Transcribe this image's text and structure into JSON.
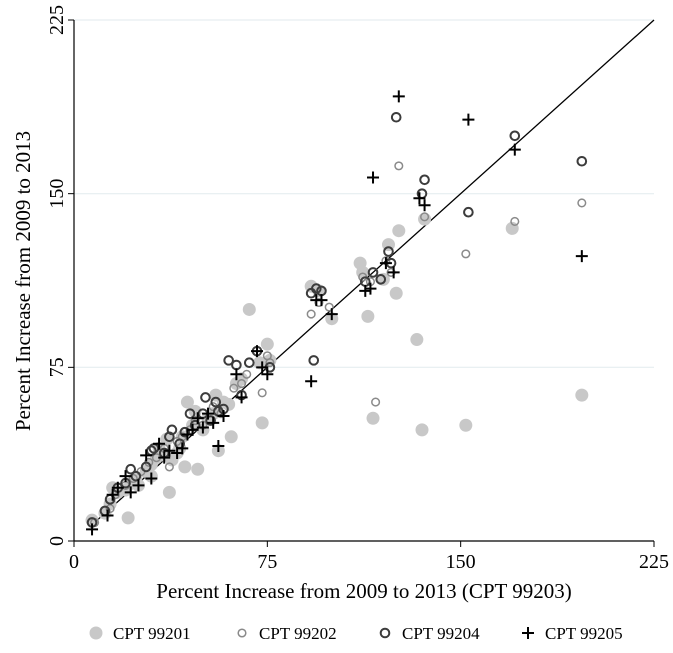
{
  "chart_data": {
    "type": "scatter",
    "xlabel": "Percent Increase from 2009 to 2013 (CPT 99203)",
    "ylabel": "Percent Increase from 2009 to 2013",
    "xlim": [
      0,
      225
    ],
    "ylim": [
      0,
      225
    ],
    "xticks": [
      0,
      75,
      150,
      225
    ],
    "yticks": [
      0,
      75,
      150,
      225
    ],
    "xtick_labels": [
      "0",
      "75",
      "150",
      "225"
    ],
    "ytick_labels": [
      "0",
      "75",
      "150",
      "225"
    ],
    "grid": "horizontal",
    "reference_line": {
      "from": [
        7,
        7
      ],
      "to": [
        225,
        225
      ]
    },
    "legend_position": "bottom",
    "series": [
      {
        "name": "CPT 99201",
        "marker": "filled-circle",
        "color": "#c8c8c8",
        "points": [
          [
            7,
            9
          ],
          [
            12,
            12
          ],
          [
            14,
            16
          ],
          [
            15,
            23
          ],
          [
            17,
            21
          ],
          [
            20,
            22
          ],
          [
            21,
            10
          ],
          [
            22,
            25
          ],
          [
            24,
            27
          ],
          [
            25,
            24
          ],
          [
            28,
            30
          ],
          [
            30,
            28
          ],
          [
            30,
            33
          ],
          [
            32,
            36
          ],
          [
            33,
            40
          ],
          [
            35,
            37
          ],
          [
            36,
            44
          ],
          [
            37,
            21
          ],
          [
            38,
            35
          ],
          [
            40,
            38
          ],
          [
            41,
            40
          ],
          [
            42,
            45
          ],
          [
            43,
            32
          ],
          [
            44,
            60
          ],
          [
            46,
            50
          ],
          [
            47,
            56
          ],
          [
            48,
            31
          ],
          [
            50,
            48
          ],
          [
            52,
            53
          ],
          [
            54,
            55
          ],
          [
            55,
            63
          ],
          [
            56,
            39
          ],
          [
            58,
            60
          ],
          [
            60,
            59
          ],
          [
            61,
            45
          ],
          [
            63,
            68
          ],
          [
            65,
            70
          ],
          [
            68,
            100
          ],
          [
            72,
            77
          ],
          [
            73,
            51
          ],
          [
            75,
            85
          ],
          [
            76,
            78
          ],
          [
            92,
            110
          ],
          [
            95,
            108
          ],
          [
            100,
            96
          ],
          [
            111,
            120
          ],
          [
            112,
            116
          ],
          [
            114,
            97
          ],
          [
            116,
            53
          ],
          [
            120,
            113
          ],
          [
            122,
            128
          ],
          [
            125,
            107
          ],
          [
            126,
            134
          ],
          [
            133,
            87
          ],
          [
            135,
            48
          ],
          [
            136,
            139
          ],
          [
            152,
            50
          ],
          [
            170,
            135
          ],
          [
            197,
            63
          ]
        ]
      },
      {
        "name": "CPT 99202",
        "marker": "small-hollow-circle",
        "color": "#8a8a8a",
        "points": [
          [
            8,
            8
          ],
          [
            14,
            14
          ],
          [
            16,
            20
          ],
          [
            20,
            24
          ],
          [
            23,
            27
          ],
          [
            26,
            30
          ],
          [
            29,
            34
          ],
          [
            32,
            36
          ],
          [
            35,
            40
          ],
          [
            37,
            32
          ],
          [
            40,
            43
          ],
          [
            42,
            45
          ],
          [
            45,
            48
          ],
          [
            47,
            52
          ],
          [
            50,
            50
          ],
          [
            54,
            58
          ],
          [
            57,
            55
          ],
          [
            62,
            66
          ],
          [
            65,
            68
          ],
          [
            67,
            72
          ],
          [
            73,
            64
          ],
          [
            75,
            80
          ],
          [
            76,
            77
          ],
          [
            92,
            98
          ],
          [
            95,
            103
          ],
          [
            99,
            101
          ],
          [
            112,
            114
          ],
          [
            115,
            112
          ],
          [
            117,
            60
          ],
          [
            121,
            121
          ],
          [
            123,
            116
          ],
          [
            126,
            162
          ],
          [
            136,
            140
          ],
          [
            152,
            124
          ],
          [
            171,
            138
          ],
          [
            197,
            146
          ]
        ]
      },
      {
        "name": "CPT 99204",
        "marker": "hollow-circle",
        "color": "#3c3c3c",
        "points": [
          [
            7,
            8
          ],
          [
            12,
            13
          ],
          [
            14,
            18
          ],
          [
            17,
            23
          ],
          [
            20,
            25
          ],
          [
            22,
            31
          ],
          [
            24,
            28
          ],
          [
            28,
            32
          ],
          [
            30,
            39
          ],
          [
            31,
            40
          ],
          [
            35,
            38
          ],
          [
            37,
            45
          ],
          [
            38,
            48
          ],
          [
            41,
            42
          ],
          [
            43,
            47
          ],
          [
            45,
            55
          ],
          [
            47,
            50
          ],
          [
            50,
            55
          ],
          [
            51,
            62
          ],
          [
            53,
            52
          ],
          [
            55,
            60
          ],
          [
            56,
            56
          ],
          [
            58,
            57
          ],
          [
            60,
            78
          ],
          [
            63,
            76
          ],
          [
            65,
            63
          ],
          [
            68,
            77
          ],
          [
            71,
            82
          ],
          [
            76,
            75
          ],
          [
            92,
            107
          ],
          [
            93,
            78
          ],
          [
            94,
            109
          ],
          [
            96,
            108
          ],
          [
            113,
            112
          ],
          [
            116,
            116
          ],
          [
            119,
            113
          ],
          [
            122,
            125
          ],
          [
            123,
            120
          ],
          [
            125,
            183
          ],
          [
            135,
            150
          ],
          [
            136,
            156
          ],
          [
            153,
            142
          ],
          [
            171,
            175
          ],
          [
            197,
            164
          ]
        ]
      },
      {
        "name": "CPT 99205",
        "marker": "plus",
        "color": "#000000",
        "points": [
          [
            7,
            5
          ],
          [
            13,
            11
          ],
          [
            15,
            20
          ],
          [
            17,
            23
          ],
          [
            20,
            28
          ],
          [
            22,
            21
          ],
          [
            25,
            24
          ],
          [
            28,
            37
          ],
          [
            30,
            27
          ],
          [
            33,
            42
          ],
          [
            35,
            36
          ],
          [
            37,
            39
          ],
          [
            40,
            38
          ],
          [
            42,
            40
          ],
          [
            44,
            46
          ],
          [
            46,
            48
          ],
          [
            48,
            53
          ],
          [
            50,
            49
          ],
          [
            52,
            55
          ],
          [
            54,
            51
          ],
          [
            56,
            41
          ],
          [
            58,
            54
          ],
          [
            63,
            72
          ],
          [
            65,
            62
          ],
          [
            71,
            82
          ],
          [
            73,
            75
          ],
          [
            75,
            72
          ],
          [
            92,
            69
          ],
          [
            94,
            104
          ],
          [
            96,
            104
          ],
          [
            100,
            98
          ],
          [
            113,
            108
          ],
          [
            115,
            109
          ],
          [
            116,
            157
          ],
          [
            121,
            120
          ],
          [
            124,
            116
          ],
          [
            126,
            192
          ],
          [
            134,
            148
          ],
          [
            136,
            145
          ],
          [
            153,
            182
          ],
          [
            171,
            169
          ],
          [
            197,
            123
          ]
        ]
      }
    ]
  }
}
